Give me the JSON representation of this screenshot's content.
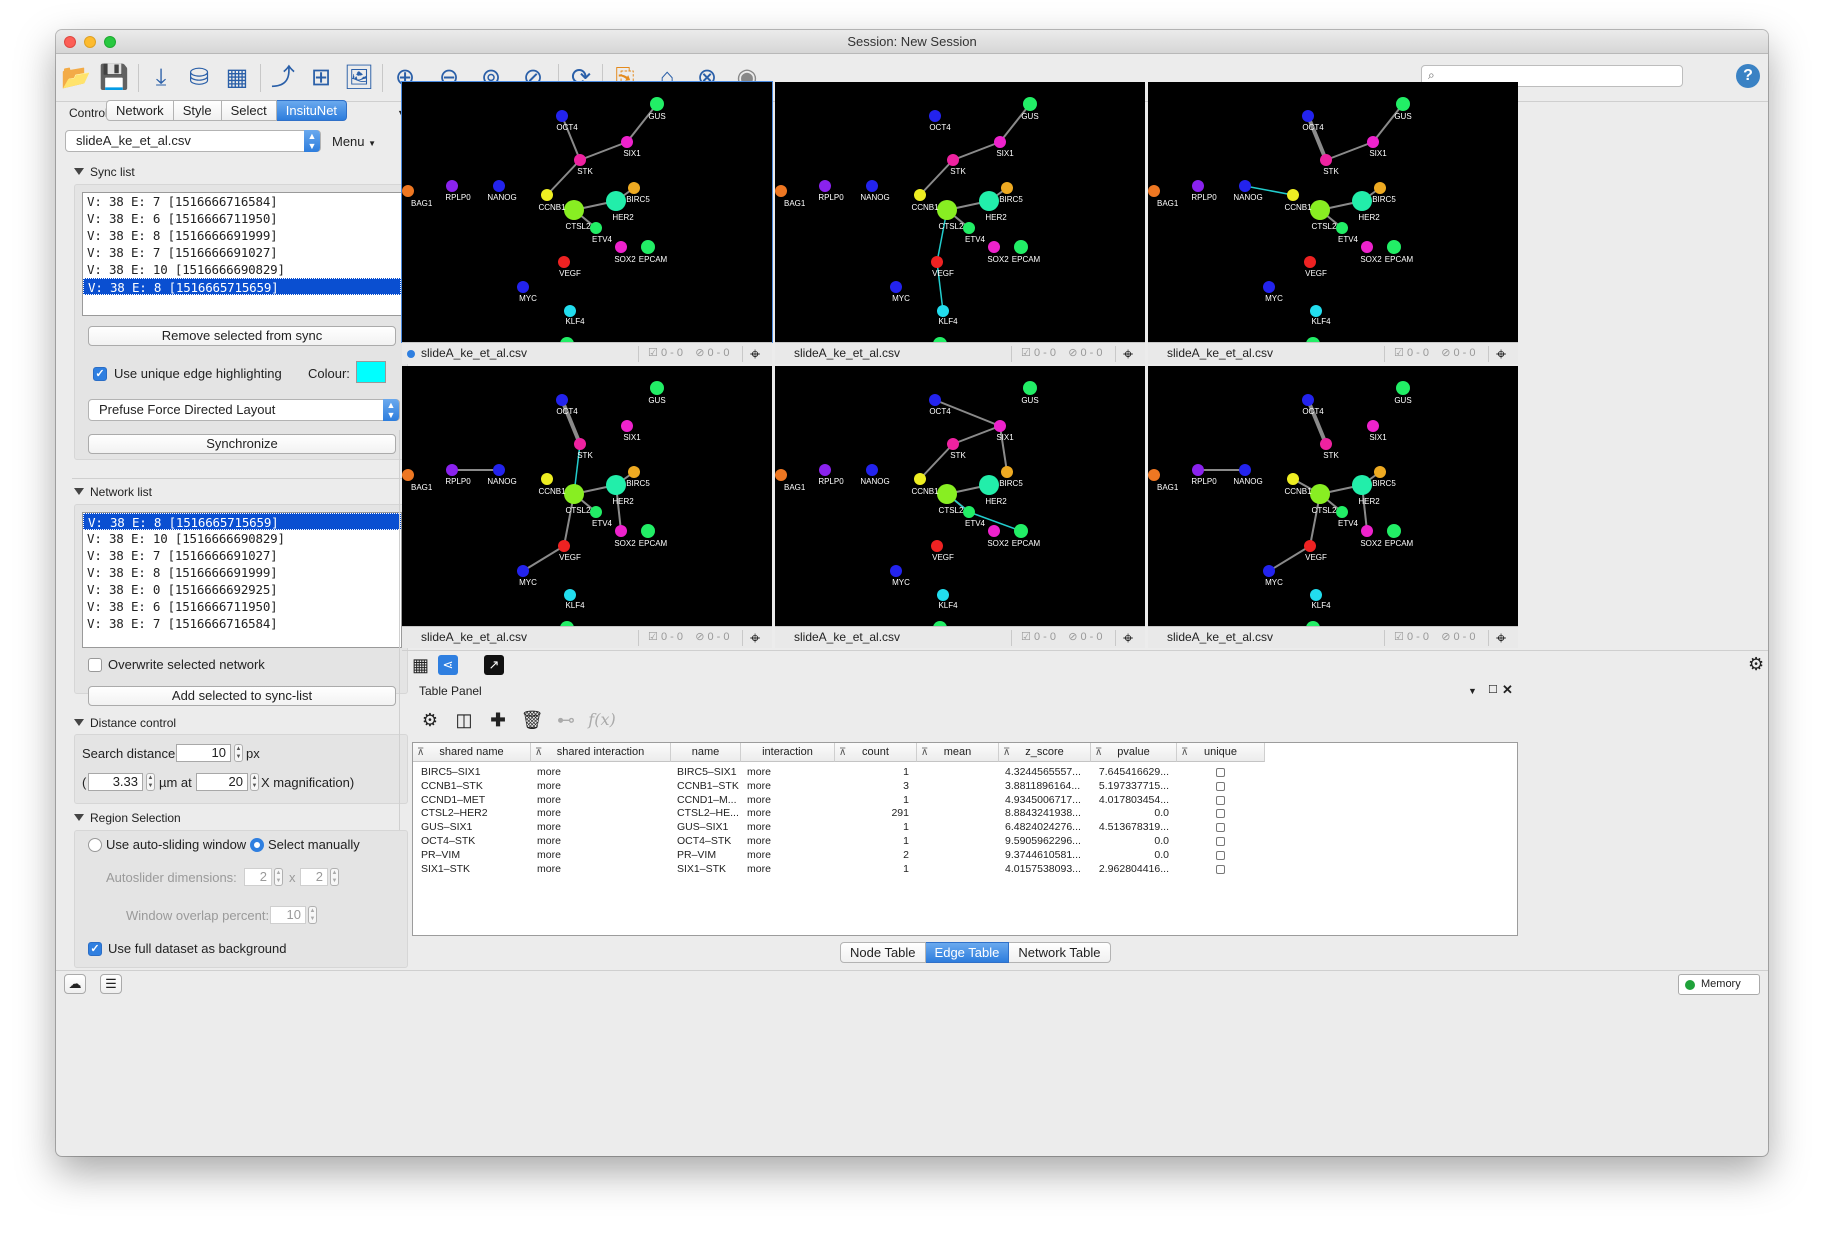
{
  "window": {
    "title": "Session: New Session"
  },
  "toolbar": {
    "icons": [
      "open-session-icon",
      "save-session-icon",
      "import-network-file-icon",
      "import-network-database-icon",
      "import-table-icon",
      "export-network-icon",
      "export-table-icon",
      "export-image-icon",
      "zoom-in-icon",
      "zoom-out-icon",
      "zoom-fit-icon",
      "zoom-selected-icon",
      "refresh-icon",
      "new-network-from-selection-icon",
      "home-icon",
      "hide-icon",
      "show-icon"
    ],
    "search_placeholder": "",
    "help_label": "?"
  },
  "control_panel": {
    "title": "Control Panel",
    "tabs": [
      "Network",
      "Style",
      "Select",
      "InsituNet"
    ],
    "active_tab": "InsituNet",
    "file_select": "slideA_ke_et_al.csv",
    "menu_label": "Menu",
    "sync_list": {
      "title": "Sync list",
      "items": [
        "V: 38 E: 7 [1516666716584]",
        "V: 38 E: 6 [1516666711950]",
        "V: 38 E: 8 [1516666691999]",
        "V: 38 E: 7 [1516666691027]",
        "V: 38 E: 10 [1516666690829]",
        "V: 38 E: 8 [1516665715659]"
      ],
      "selected_index": 5,
      "remove_label": "Remove selected from sync",
      "unique_edge_label": "Use unique edge highlighting",
      "unique_edge_checked": true,
      "colour_label": "Colour:",
      "colour_value": "#00ffff",
      "layout_select": "Prefuse Force Directed Layout",
      "synchronize_label": "Synchronize"
    },
    "network_list": {
      "title": "Network list",
      "items": [
        "V: 38 E: 8 [1516665715659]",
        "V: 38 E: 10 [1516666690829]",
        "V: 38 E: 7 [1516666691027]",
        "V: 38 E: 8 [1516666691999]",
        "V: 38 E: 0 [1516666692925]",
        "V: 38 E: 6 [1516666711950]",
        "V: 38 E: 7 [1516666716584]"
      ],
      "selected_index": 0,
      "overwrite_label": "Overwrite selected network",
      "overwrite_checked": false,
      "add_label": "Add selected to sync-list"
    },
    "distance_control": {
      "title": "Distance control",
      "search_distance_label": "Search distance:",
      "search_distance_value": "10",
      "px_label": "px",
      "open_paren": "(",
      "um_value": "3.33",
      "um_at_label": "µm at",
      "magnification_value": "20",
      "magnification_label": "X magnification)"
    },
    "region_selection": {
      "title": "Region Selection",
      "auto_label": "Use auto-sliding window",
      "manual_label": "Select manually",
      "selected": "manual",
      "autoslider_label": "Autoslider dimensions:",
      "autoslider_w": "2",
      "x_label": "x",
      "autoslider_h": "2",
      "overlap_label": "Window overlap percent:",
      "overlap_value": "10",
      "full_dataset_label": "Use full dataset as background",
      "full_dataset_checked": true
    }
  },
  "views": {
    "node_colors": {
      "blue": "#2323ee",
      "purple": "#8a22ee",
      "green": "#22ee66",
      "lime": "#88ee22",
      "seafoam": "#22eeaa",
      "magenta": "#ee22cc",
      "pink": "#ee22a0",
      "yellow": "#eeee22",
      "orange": "#eeaa22",
      "red": "#ee2222",
      "dkorange": "#ee7722",
      "cyan": "#22ddee"
    },
    "node_labels": {
      "GUS": "GUS",
      "OCT4": "OCT4",
      "SIX1": "SIX1",
      "STK": "STK",
      "BAG1": "BAG1",
      "RPLP0": "RPLP0",
      "NANOG": "NANOG",
      "CCNB1": "CCNB1",
      "BIRC5": "BIRC5",
      "HER2": "HER2",
      "CTSL2": "CTSL2",
      "ETV4": "ETV4",
      "SOX2": "SOX2",
      "EPCAM": "EPCAM",
      "VEGF": "VEGF",
      "MYC": "MYC",
      "KLF4": "KLF4"
    },
    "highlight_color": "#22cccc",
    "items": [
      {
        "name": "slideA_ke_et_al.csv",
        "selected_count": "0 - 0",
        "hidden_count": "0 - 0",
        "current": true
      },
      {
        "name": "slideA_ke_et_al.csv",
        "selected_count": "0 - 0",
        "hidden_count": "0 - 0",
        "current": false
      },
      {
        "name": "slideA_ke_et_al.csv",
        "selected_count": "0 - 0",
        "hidden_count": "0 - 0",
        "current": false
      },
      {
        "name": "slideA_ke_et_al.csv",
        "selected_count": "0 - 0",
        "hidden_count": "0 - 0",
        "current": false
      },
      {
        "name": "slideA_ke_et_al.csv",
        "selected_count": "0 - 0",
        "hidden_count": "0 - 0",
        "current": false
      },
      {
        "name": "slideA_ke_et_al.csv",
        "selected_count": "0 - 0",
        "hidden_count": "0 - 0",
        "current": false
      }
    ]
  },
  "table_panel": {
    "title": "Table Panel",
    "columns": [
      "shared name",
      "shared interaction",
      "name",
      "interaction",
      "count",
      "mean",
      "z_score",
      "pvalue",
      "unique"
    ],
    "rows": [
      {
        "shared_name": "BIRC5–SIX1",
        "shared_interaction": "more",
        "name": "BIRC5–SIX1",
        "interaction": "more",
        "count": "1",
        "mean": "",
        "z_score": "4.3244565557...",
        "pvalue": "7.645416629..."
      },
      {
        "shared_name": "CCNB1–STK",
        "shared_interaction": "more",
        "name": "CCNB1–STK",
        "interaction": "more",
        "count": "3",
        "mean": "",
        "z_score": "3.8811896164...",
        "pvalue": "5.197337715..."
      },
      {
        "shared_name": "CCND1–MET",
        "shared_interaction": "more",
        "name": "CCND1–M...",
        "interaction": "more",
        "count": "1",
        "mean": "",
        "z_score": "4.9345006717...",
        "pvalue": "4.017803454..."
      },
      {
        "shared_name": "CTSL2–HER2",
        "shared_interaction": "more",
        "name": "CTSL2–HE...",
        "interaction": "more",
        "count": "291",
        "mean": "",
        "z_score": "8.8843241938...",
        "pvalue": "0.0"
      },
      {
        "shared_name": "GUS–SIX1",
        "shared_interaction": "more",
        "name": "GUS–SIX1",
        "interaction": "more",
        "count": "1",
        "mean": "",
        "z_score": "6.4824024276...",
        "pvalue": "4.513678319..."
      },
      {
        "shared_name": "OCT4–STK",
        "shared_interaction": "more",
        "name": "OCT4–STK",
        "interaction": "more",
        "count": "1",
        "mean": "",
        "z_score": "9.5905962296...",
        "pvalue": "0.0"
      },
      {
        "shared_name": "PR–VIM",
        "shared_interaction": "more",
        "name": "PR–VIM",
        "interaction": "more",
        "count": "2",
        "mean": "",
        "z_score": "9.3744610581...",
        "pvalue": "0.0"
      },
      {
        "shared_name": "SIX1–STK",
        "shared_interaction": "more",
        "name": "SIX1–STK",
        "interaction": "more",
        "count": "1",
        "mean": "",
        "z_score": "4.0157538093...",
        "pvalue": "2.962804416..."
      }
    ],
    "bottom_tabs": [
      "Node Table",
      "Edge Table",
      "Network Table"
    ],
    "active_bottom_tab": "Edge Table"
  },
  "statusbar": {
    "memory_label": "Memory"
  }
}
